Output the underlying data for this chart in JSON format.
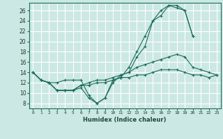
{
  "title": "",
  "xlabel": "Humidex (Indice chaleur)",
  "bg_color": "#cce8e4",
  "grid_color": "#ffffff",
  "line_color": "#1a6b5a",
  "xlim": [
    -0.5,
    23.5
  ],
  "ylim": [
    7,
    27.5
  ],
  "yticks": [
    8,
    10,
    12,
    14,
    16,
    18,
    20,
    22,
    24,
    26
  ],
  "xticks": [
    0,
    1,
    2,
    3,
    4,
    5,
    6,
    7,
    8,
    9,
    10,
    11,
    12,
    13,
    14,
    15,
    16,
    17,
    18,
    19,
    20,
    21,
    22,
    23
  ],
  "series": [
    [
      14,
      12.5,
      12,
      12,
      12.5,
      12.5,
      12.5,
      9.5,
      8,
      9,
      12.5,
      13,
      15,
      18,
      21,
      24,
      25,
      27,
      27,
      26,
      21,
      null,
      null,
      null
    ],
    [
      14,
      12.5,
      12,
      10.5,
      10.5,
      10.5,
      11,
      9,
      8,
      9,
      12,
      13.5,
      14,
      17,
      19,
      24,
      26,
      27,
      26.5,
      26,
      21,
      null,
      null,
      null
    ],
    [
      14,
      12.5,
      12,
      10.5,
      10.5,
      10.5,
      11.5,
      12,
      12.5,
      12.5,
      13,
      13.5,
      14,
      15,
      15.5,
      16,
      16.5,
      17,
      17.5,
      17,
      15,
      14.5,
      14,
      13.5
    ],
    [
      14,
      12.5,
      12,
      10.5,
      10.5,
      10.5,
      11.5,
      11.5,
      12,
      12,
      12.5,
      13,
      13,
      13.5,
      13.5,
      14,
      14.5,
      14.5,
      14.5,
      14,
      13.5,
      13.5,
      13,
      13.5
    ]
  ]
}
